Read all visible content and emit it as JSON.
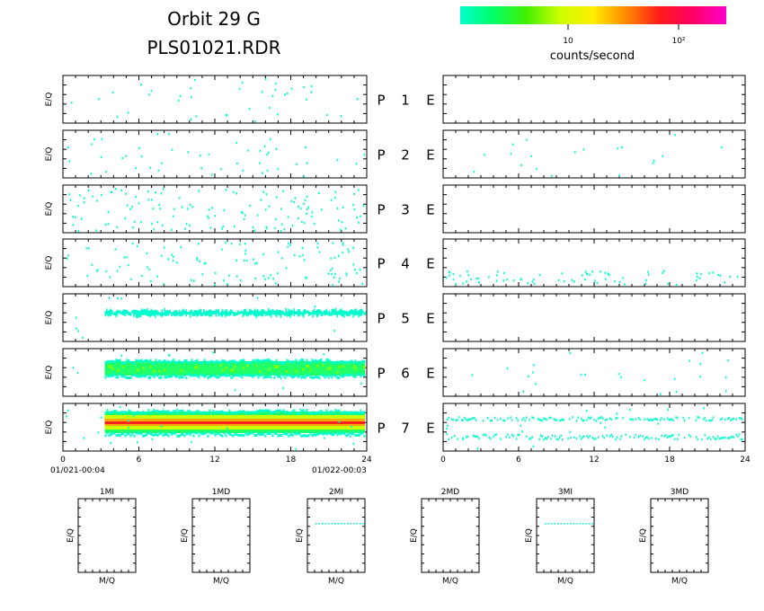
{
  "header": {
    "title_line1": "Orbit 29 G",
    "title_line2": "PLS01021.RDR"
  },
  "colorbar": {
    "stops": [
      "#00ffcc",
      "#00ff66",
      "#44ee00",
      "#ccff00",
      "#ffee00",
      "#ff8800",
      "#ff1a1a",
      "#ff0066",
      "#ff00cc"
    ],
    "tick_labels": [
      "10",
      "10²"
    ],
    "label": "counts/second"
  },
  "colors": {
    "low": "#00ffcc",
    "mid_low": "#22ff66",
    "mid": "#ccff00",
    "high": "#ffaa00",
    "peak": "#ff2020"
  },
  "chart_data": {
    "type": "heatmap",
    "x_ticks": [
      "0",
      "6",
      "12",
      "18",
      "24"
    ],
    "xlim": [
      0,
      24
    ],
    "ylabel": "E/Q",
    "start_label": "01/021-00:04",
    "end_label": "01/022-00:03",
    "rows": [
      {
        "label_p": "P",
        "num": "1",
        "label_e": "E",
        "left_density": 0.1,
        "left_band": null,
        "right_density": 0.0,
        "right_band": null
      },
      {
        "label_p": "P",
        "num": "2",
        "label_e": "E",
        "left_density": 0.12,
        "left_band": null,
        "right_density": 0.05,
        "right_band": null
      },
      {
        "label_p": "P",
        "num": "3",
        "label_e": "E",
        "left_density": 0.35,
        "left_band": null,
        "right_density": 0.0,
        "right_band": null
      },
      {
        "label_p": "P",
        "num": "4",
        "label_e": "E",
        "left_density": 0.3,
        "left_band": null,
        "right_density": 0.2,
        "right_band": null
      },
      {
        "label_p": "P",
        "num": "5",
        "label_e": "E",
        "left_density": 0.03,
        "left_band": {
          "x0": 3.3,
          "x1": 24,
          "intensity": 1
        },
        "right_density": 0.0,
        "right_band": null
      },
      {
        "label_p": "P",
        "num": "6",
        "label_e": "E",
        "left_density": 0.05,
        "left_band": {
          "x0": 3.3,
          "x1": 24,
          "intensity": 2
        },
        "right_density": 0.06,
        "right_band": null
      },
      {
        "label_p": "P",
        "num": "7",
        "label_e": "E",
        "left_density": 0.08,
        "left_band": {
          "x0": 3.3,
          "x1": 24,
          "intensity": 3
        },
        "right_density": 0.05,
        "right_band": {
          "x0": 0,
          "x1": 24,
          "intensity": 1
        }
      }
    ],
    "mq_panels": [
      {
        "title": "1MI",
        "xlabel": "M/Q",
        "ylabel": "E/Q",
        "has_trace": false
      },
      {
        "title": "1MD",
        "xlabel": "M/Q",
        "ylabel": "E/Q",
        "has_trace": false
      },
      {
        "title": "2MI",
        "xlabel": "M/Q",
        "ylabel": "E/Q",
        "has_trace": true
      },
      {
        "title": "2MD",
        "xlabel": "M/Q",
        "ylabel": "E/Q",
        "has_trace": false
      },
      {
        "title": "3MI",
        "xlabel": "M/Q",
        "ylabel": "E/Q",
        "has_trace": true
      },
      {
        "title": "3MD",
        "xlabel": "M/Q",
        "ylabel": "E/Q",
        "has_trace": false
      }
    ]
  }
}
